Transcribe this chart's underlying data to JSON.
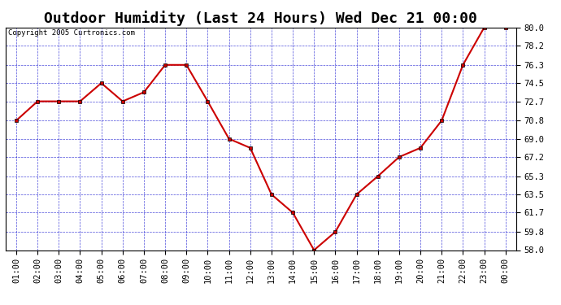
{
  "title": "Outdoor Humidity (Last 24 Hours) Wed Dec 21 00:00",
  "copyright": "Copyright 2005 Curtronics.com",
  "x_labels": [
    "01:00",
    "02:00",
    "03:00",
    "04:00",
    "05:00",
    "06:00",
    "07:00",
    "08:00",
    "09:00",
    "10:00",
    "11:00",
    "12:00",
    "13:00",
    "14:00",
    "15:00",
    "16:00",
    "17:00",
    "18:00",
    "19:00",
    "20:00",
    "21:00",
    "22:00",
    "23:00",
    "00:00"
  ],
  "y_values": [
    70.8,
    72.7,
    72.7,
    72.7,
    74.5,
    72.7,
    73.6,
    76.3,
    76.3,
    72.7,
    69.0,
    68.1,
    63.5,
    61.7,
    58.0,
    59.8,
    63.5,
    65.3,
    67.2,
    68.1,
    70.8,
    76.3,
    80.0,
    80.0
  ],
  "ylim_min": 58.0,
  "ylim_max": 80.0,
  "yticks": [
    58.0,
    59.8,
    61.7,
    63.5,
    65.3,
    67.2,
    69.0,
    70.8,
    72.7,
    74.5,
    76.3,
    78.2,
    80.0
  ],
  "line_color": "#cc0000",
  "marker_color": "#cc0000",
  "marker_edge_color": "#000000",
  "bg_color": "#ffffff",
  "plot_bg_color": "#ffffff",
  "grid_color": "#0000cc",
  "title_fontsize": 13,
  "tick_fontsize": 7.5,
  "copyright_fontsize": 6.5
}
